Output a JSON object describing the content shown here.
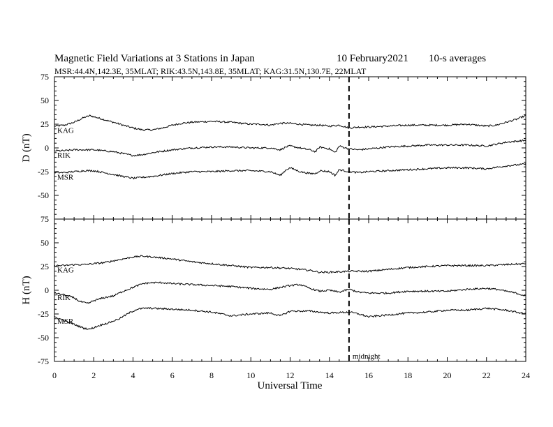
{
  "chart_data": {
    "type": "line",
    "title": "Magnetic Field Variations at 3 Stations in Japan",
    "date": "10 February2021",
    "averaging": "10-s averages",
    "subtitle": "MSR:44.4N,142.3E, 35MLAT;  RIK:43.5N,143.8E, 35MLAT;  KAG:31.5N,130.7E, 22MLAT",
    "xlabel": "Universal Time",
    "xlim": [
      0,
      24
    ],
    "xticks": [
      0,
      2,
      4,
      6,
      8,
      10,
      12,
      14,
      16,
      18,
      20,
      22,
      24
    ],
    "marker": {
      "x": 15,
      "label": "midnight",
      "style": "dashed"
    },
    "grid": false,
    "panels": [
      {
        "ylabel": "D (nT)",
        "ylim": [
          -75,
          75
        ],
        "yticks": [
          75,
          50,
          25,
          0,
          -25,
          -50,
          -75
        ],
        "series": [
          {
            "name": "KAG",
            "x": [
              0,
              0.5,
              1,
              1.5,
              1.8,
              2.5,
              3,
              3.5,
              4,
              4.5,
              5,
              5.5,
              6,
              6.5,
              7,
              8,
              9,
              10,
              10.5,
              11,
              11.5,
              12,
              12.5,
              13,
              13.5,
              14,
              14.5,
              15,
              15.5,
              16,
              17,
              18,
              19,
              20,
              21,
              22,
              22.5,
              23,
              23.5,
              24
            ],
            "y": [
              23,
              24,
              27,
              32,
              34,
              30,
              27,
              24,
              21,
              19,
              19,
              21,
              24,
              26,
              27,
              28,
              27,
              25,
              25,
              24,
              26,
              26,
              25,
              24,
              24,
              23,
              24,
              21,
              22,
              22,
              23,
              24,
              24,
              24,
              25,
              23,
              24,
              27,
              30,
              34
            ]
          },
          {
            "name": "RIK",
            "x": [
              0,
              0.5,
              1,
              1.5,
              2,
              2.5,
              3,
              3.5,
              4,
              4.5,
              5,
              6,
              7,
              8,
              9,
              10,
              11,
              11.5,
              11.8,
              12,
              12.5,
              13,
              13.3,
              13.5,
              14,
              14.3,
              14.5,
              15,
              15.5,
              16,
              17,
              18,
              19,
              20,
              21,
              22,
              23,
              24
            ],
            "y": [
              -3,
              -3,
              -2,
              -2,
              -2,
              -3,
              -4,
              -6,
              -8,
              -7,
              -5,
              -2,
              0,
              1,
              1,
              0,
              0,
              -2,
              1,
              2,
              0,
              -2,
              -4,
              1,
              -1,
              -5,
              2,
              -1,
              -2,
              -1,
              1,
              2,
              3,
              3,
              3,
              2,
              6,
              8
            ]
          },
          {
            "name": "MSR",
            "x": [
              0,
              0.5,
              1,
              1.5,
              2,
              2.5,
              3,
              3.5,
              4,
              4.5,
              5,
              6,
              7,
              8,
              9,
              10,
              11,
              11.5,
              11.8,
              12,
              12.5,
              13,
              13.3,
              13.5,
              14,
              14.3,
              14.5,
              15,
              15.5,
              16,
              17,
              18,
              19,
              20,
              21,
              22,
              23,
              24
            ],
            "y": [
              -26,
              -26,
              -25,
              -24,
              -24,
              -26,
              -28,
              -30,
              -32,
              -31,
              -30,
              -27,
              -25,
              -25,
              -24,
              -24,
              -25,
              -29,
              -23,
              -21,
              -25,
              -27,
              -27,
              -24,
              -25,
              -29,
              -23,
              -25,
              -26,
              -25,
              -24,
              -23,
              -22,
              -21,
              -21,
              -22,
              -19,
              -17
            ]
          }
        ]
      },
      {
        "ylabel": "H (nT)",
        "ylim": [
          -75,
          75
        ],
        "yticks": [
          75,
          50,
          25,
          0,
          -25,
          -50,
          -75
        ],
        "series": [
          {
            "name": "KAG",
            "x": [
              0,
              0.5,
              1,
              1.5,
              2,
              2.5,
              3,
              3.5,
              4,
              4.5,
              5,
              5.5,
              6,
              7,
              8,
              9,
              10,
              11,
              12,
              13,
              13.5,
              14,
              15,
              16,
              17,
              18,
              19,
              20,
              21,
              22,
              23,
              24
            ],
            "y": [
              26,
              26,
              27,
              27,
              28,
              29,
              31,
              33,
              35,
              36,
              35,
              34,
              33,
              30,
              28,
              26,
              24,
              24,
              23,
              21,
              19,
              19,
              20,
              20,
              22,
              24,
              25,
              26,
              26,
              26,
              27,
              28
            ]
          },
          {
            "name": "RIK",
            "x": [
              0,
              0.5,
              1,
              1.3,
              1.7,
              2,
              2.5,
              3,
              3.5,
              4,
              4.5,
              5,
              5.5,
              6,
              7,
              8,
              9,
              10,
              11,
              12,
              12.5,
              13,
              13.5,
              14,
              14.5,
              15,
              15.5,
              16,
              17,
              18,
              19,
              20,
              21,
              22,
              22.5,
              23,
              23.5,
              24
            ],
            "y": [
              -3,
              -5,
              -8,
              -12,
              -14,
              -11,
              -8,
              -6,
              -1,
              3,
              7,
              8,
              8,
              7,
              6,
              5,
              4,
              2,
              1,
              5,
              6,
              2,
              -1,
              0,
              -2,
              1,
              -2,
              -3,
              -3,
              -1,
              -1,
              -1,
              1,
              2,
              1,
              -1,
              -3,
              -6
            ]
          },
          {
            "name": "MSR",
            "x": [
              0,
              0.5,
              1,
              1.5,
              1.8,
              2.3,
              2.8,
              3.3,
              3.8,
              4.2,
              4.6,
              5,
              6,
              7,
              8,
              9,
              10,
              11,
              11.5,
              12,
              13,
              14,
              15,
              15.5,
              16,
              17,
              18,
              19,
              20,
              21,
              22,
              23,
              24
            ],
            "y": [
              -28,
              -32,
              -36,
              -40,
              -41,
              -37,
              -34,
              -30,
              -24,
              -20,
              -19,
              -19,
              -20,
              -21,
              -23,
              -27,
              -25,
              -24,
              -27,
              -22,
              -22,
              -24,
              -23,
              -25,
              -28,
              -26,
              -24,
              -23,
              -21,
              -21,
              -19,
              -21,
              -25
            ]
          }
        ]
      }
    ]
  }
}
